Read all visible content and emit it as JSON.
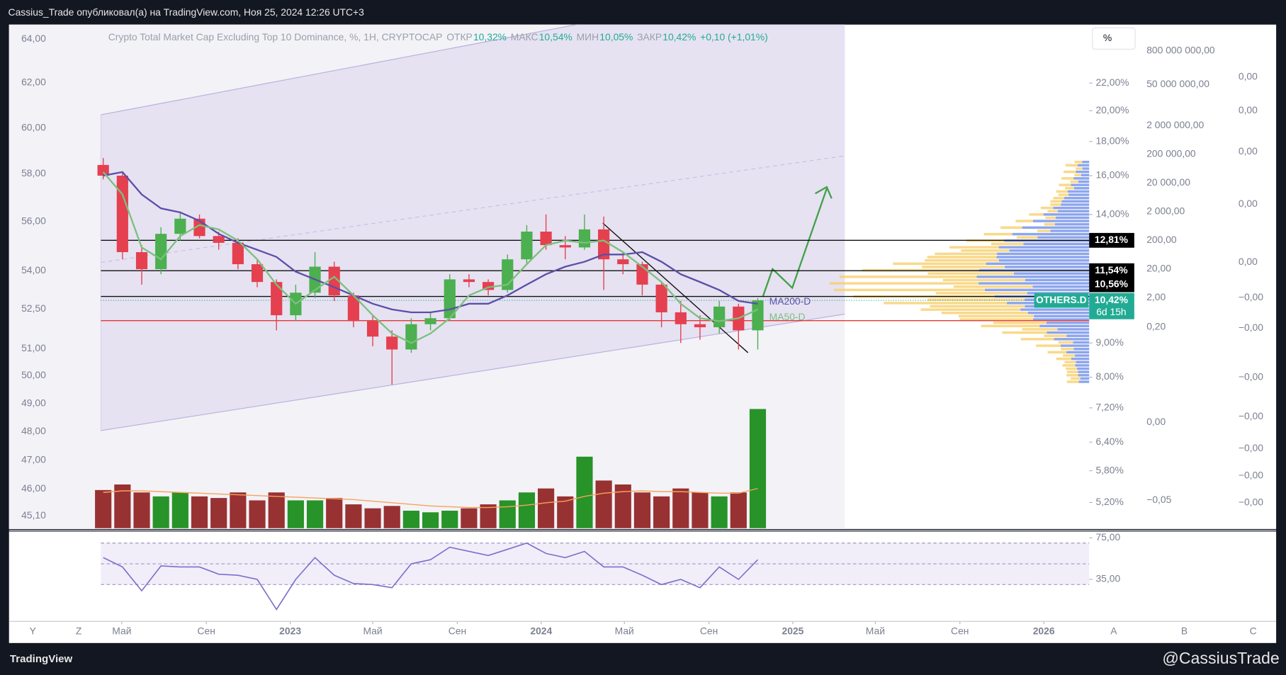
{
  "header": {
    "publisher": "Cassius_Trade опубликовал(а) на TradingView.com, Ноя 25, 2024 12:26 UTC+3",
    "scale_button": "%"
  },
  "legend": {
    "title": "Crypto Total Market Cap Excluding Top 10 Dominance, %, 1H, CRYPTOCAP",
    "items": [
      [
        "ОТКР",
        "10,32%"
      ],
      [
        "МАКС",
        "10,54%"
      ],
      [
        "МИН",
        "10,05%"
      ],
      [
        "ЗАКР",
        "10,42%"
      ]
    ],
    "change": "+0,10 (+1,01%)"
  },
  "chart_data": {
    "type": "candlestick",
    "x": [
      "2022-04-04",
      "2022-05-02",
      "2022-05-30",
      "2022-06-27",
      "2022-07-25",
      "2022-08-22",
      "2022-09-19",
      "2022-10-17",
      "2022-11-14",
      "2022-12-12",
      "2023-01-09",
      "2023-02-06",
      "2023-03-06",
      "2023-04-03",
      "2023-05-01",
      "2023-05-29",
      "2023-06-26",
      "2023-07-24",
      "2023-08-21",
      "2023-09-18",
      "2023-10-16",
      "2023-11-13",
      "2023-12-11",
      "2024-01-08",
      "2024-02-05",
      "2024-03-04",
      "2024-04-01",
      "2024-04-29",
      "2024-05-27",
      "2024-06-24",
      "2024-07-22",
      "2024-08-19",
      "2024-09-16",
      "2024-10-14",
      "2024-11-11"
    ],
    "open": [
      16.6,
      16.0,
      12.3,
      11.6,
      13.1,
      13.8,
      13.0,
      12.7,
      11.8,
      11.1,
      9.9,
      10.7,
      11.7,
      10.6,
      9.7,
      9.2,
      8.8,
      9.6,
      9.8,
      11.2,
      11.1,
      10.8,
      12.0,
      13.2,
      12.6,
      12.5,
      13.3,
      12.0,
      11.8,
      11.0,
      10.0,
      9.6,
      9.5,
      10.2,
      9.4
    ],
    "high": [
      17.0,
      16.2,
      12.6,
      13.4,
      14.1,
      14.0,
      13.2,
      12.9,
      12.0,
      11.2,
      11.0,
      12.3,
      11.9,
      10.7,
      9.9,
      9.4,
      9.8,
      10.0,
      11.4,
      11.4,
      11.2,
      12.2,
      13.5,
      14.0,
      13.0,
      14.0,
      13.9,
      12.3,
      11.9,
      11.1,
      10.4,
      9.9,
      10.4,
      10.3,
      10.5
    ],
    "low": [
      15.8,
      12.0,
      11.0,
      11.4,
      12.8,
      12.9,
      12.4,
      11.6,
      10.9,
      9.4,
      9.7,
      10.5,
      10.4,
      9.5,
      8.9,
      7.8,
      8.7,
      9.4,
      9.7,
      10.9,
      10.6,
      10.7,
      11.8,
      12.4,
      12.0,
      12.4,
      10.8,
      11.4,
      10.6,
      9.5,
      9.0,
      9.1,
      9.3,
      8.8,
      8.8
    ],
    "close": [
      16.0,
      12.3,
      11.6,
      13.1,
      13.8,
      13.0,
      12.7,
      11.8,
      11.1,
      9.9,
      10.7,
      11.7,
      10.6,
      9.7,
      9.2,
      8.8,
      9.6,
      9.8,
      11.2,
      11.1,
      10.8,
      12.0,
      13.2,
      12.6,
      12.5,
      13.3,
      12.0,
      11.8,
      11.0,
      10.0,
      9.6,
      9.5,
      10.2,
      9.4,
      10.42
    ],
    "up_color": "#4caf50",
    "down_color": "#e5404f",
    "log_scale": true,
    "ylim": [
      4.76,
      26.9
    ],
    "yticks": [
      {
        "value": 22,
        "label": "22,00%"
      },
      {
        "value": 20,
        "label": "20,00%"
      },
      {
        "value": 18,
        "label": "18,00%"
      },
      {
        "value": 16,
        "label": "16,00%"
      },
      {
        "value": 14,
        "label": "14,00%"
      },
      {
        "value": 9,
        "label": "9,00%"
      },
      {
        "value": 8,
        "label": "8,00%"
      },
      {
        "value": 7.2,
        "label": "7,20%"
      },
      {
        "value": 6.4,
        "label": "6,40%"
      },
      {
        "value": 5.8,
        "label": "5,80%"
      },
      {
        "value": 5.2,
        "label": "5,20%"
      }
    ],
    "xlim": [
      "2021-11-18",
      "2026-03-08"
    ],
    "xticks": [
      {
        "value": "2022-05-01",
        "label": "Май"
      },
      {
        "value": "2022-09-01",
        "label": "Сен"
      },
      {
        "value": "2023-01-01",
        "label": "2023"
      },
      {
        "value": "2023-05-01",
        "label": "Май"
      },
      {
        "value": "2023-09-01",
        "label": "Сен"
      },
      {
        "value": "2024-01-01",
        "label": "2024"
      },
      {
        "value": "2024-05-01",
        "label": "Май"
      },
      {
        "value": "2024-09-01",
        "label": "Сен"
      },
      {
        "value": "2025-01-01",
        "label": "2025"
      },
      {
        "value": "2025-05-01",
        "label": "Май"
      },
      {
        "value": "2025-09-01",
        "label": "Сен"
      },
      {
        "value": "2026-01-01",
        "label": "2026"
      }
    ],
    "series": [
      {
        "name": "MA200-D",
        "color": "#5b4fa8",
        "values": [
          16.0,
          16.2,
          15.0,
          14.3,
          14.1,
          13.7,
          13.1,
          12.7,
          12.4,
          12.1,
          11.5,
          11.2,
          10.9,
          10.6,
          10.3,
          10.1,
          10.0,
          10.0,
          10.1,
          10.3,
          10.3,
          10.6,
          11.0,
          11.4,
          11.7,
          11.9,
          12.2,
          12.2,
          12.3,
          11.9,
          11.4,
          11.1,
          10.8,
          10.4,
          10.3
        ]
      },
      {
        "name": "MA50-D",
        "color": "#7cc07c",
        "values": [
          16.2,
          15.0,
          12.5,
          12.0,
          13.0,
          13.5,
          13.3,
          12.8,
          12.0,
          11.0,
          10.3,
          10.8,
          11.3,
          10.6,
          9.9,
          9.3,
          9.0,
          9.3,
          9.8,
          10.6,
          10.9,
          11.0,
          11.8,
          12.6,
          12.8,
          12.7,
          12.8,
          12.3,
          11.7,
          11.1,
          10.3,
          9.8,
          9.7,
          9.8,
          10.1
        ]
      }
    ],
    "price_lines": [
      {
        "value": 12.81,
        "label": "12,81%"
      },
      {
        "value": 11.54,
        "label": "11,54%"
      },
      {
        "value": 10.56,
        "label": "10,56%"
      }
    ],
    "support_level": 9.72,
    "symbol_badge": {
      "name": "OTHERS.D",
      "value": 10.42,
      "label": "10,42%",
      "countdown": "6d 15h"
    },
    "volume": [
      48,
      55,
      45,
      40,
      45,
      40,
      38,
      45,
      35,
      45,
      35,
      35,
      38,
      30,
      25,
      28,
      22,
      20,
      22,
      25,
      30,
      35,
      45,
      50,
      40,
      90,
      60,
      55,
      45,
      40,
      50,
      45,
      40,
      45,
      150
    ],
    "volume_ma": [
      45,
      47,
      47,
      46,
      45,
      44,
      43,
      42,
      41,
      40,
      39,
      38,
      37,
      36,
      34,
      32,
      30,
      28,
      27,
      26,
      26,
      27,
      29,
      32,
      34,
      40,
      44,
      46,
      47,
      46,
      46,
      45,
      44,
      44,
      50
    ],
    "volume_lim": [
      0,
      160
    ],
    "volume_colors": {
      "up": "#118811",
      "down": "#8e1c1c",
      "ma": "#f7a35c"
    },
    "rsi": {
      "values": [
        56,
        47,
        24,
        48,
        47,
        47,
        40,
        39,
        35,
        6,
        35,
        56,
        39,
        31,
        30,
        27,
        50,
        54,
        66,
        62,
        58,
        64,
        70,
        60,
        56,
        62,
        47,
        47,
        39,
        30,
        35,
        27,
        47,
        35,
        54
      ],
      "color": "#7e6fc9",
      "ylim": [
        -5,
        81.2
      ],
      "yticks": [
        {
          "value": 75,
          "label": "75,00"
        },
        {
          "value": 35,
          "label": "35,00"
        }
      ],
      "bands": [
        70,
        50,
        30
      ]
    },
    "left_axis_labels": [
      "64,00",
      "62,00",
      "60,00",
      "58,00",
      "56,00",
      "54,00",
      "52,50",
      "51,00",
      "50,00",
      "49,00",
      "48,00",
      "47,00",
      "46,00",
      "45,10"
    ],
    "aux_axis_a": [
      "800 000 000,00",
      "50 000 000,00",
      "2 000 000,00",
      "200 000,00",
      "20 000,00",
      "2 000,00",
      "200,00",
      "20,00",
      "2,00",
      "0,20",
      "0,00",
      "−0,05"
    ],
    "aux_axis_b": [
      "0,00",
      "0,00",
      "0,00",
      "0,00",
      "0,00",
      "−0,00",
      "−0,00",
      "−0,00",
      "−0,00",
      "−0,00",
      "−0,00",
      "−0,00"
    ]
  },
  "toolbar": {
    "left": [
      "Y",
      "Z"
    ],
    "right": [
      "A",
      "B",
      "C"
    ]
  },
  "footer": {
    "brand": "TradingView",
    "handle": "@CassiusTrade"
  }
}
